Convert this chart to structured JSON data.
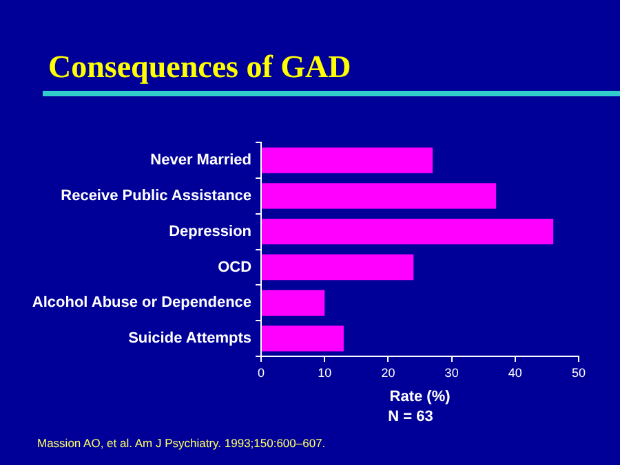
{
  "chart_data": {
    "type": "bar",
    "orientation": "horizontal",
    "title": "Consequences of GAD",
    "xlabel": "Rate (%)",
    "categories": [
      "Never Married",
      "Receive Public Assistance",
      "Depression",
      "OCD",
      "Alcohol Abuse or Dependence",
      "Suicide Attempts"
    ],
    "values": [
      27,
      37,
      46,
      24,
      10,
      13
    ],
    "color": "#ff00ff",
    "xlim": [
      0,
      50
    ],
    "xticks": [
      0,
      10,
      20,
      30,
      40,
      50
    ],
    "grid": false,
    "legend": false,
    "annotations": [
      "N = 63",
      "Massion AO, et al. Am J Psychiatry. 1993;150:600–607."
    ]
  }
}
